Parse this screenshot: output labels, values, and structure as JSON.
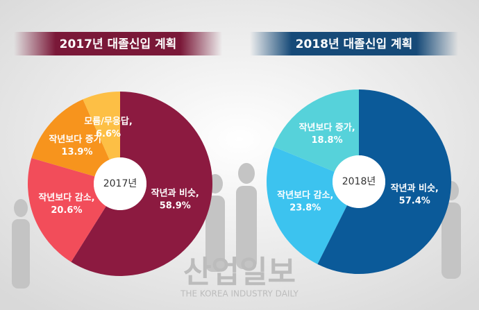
{
  "chart_data": [
    {
      "type": "pie",
      "title": "2017년 대졸신입 계획",
      "center_label": "2017년",
      "categories": [
        "작년과 비슷,",
        "작년보다 감소,",
        "작년보다 증가,",
        "모름/무응답,"
      ],
      "values": [
        58.9,
        20.6,
        13.9,
        6.6
      ],
      "value_labels": [
        "58.9%",
        "20.6%",
        "13.9%",
        "6.6%"
      ],
      "colors": [
        "#8c1a40",
        "#f24d5a",
        "#f7941d",
        "#fdbf45"
      ],
      "title_color": "#7a1838"
    },
    {
      "type": "pie",
      "title": "2018년 대졸신입 계획",
      "center_label": "2018년",
      "categories": [
        "작년과 비슷,",
        "작년보다 감소,",
        "작년보다 증가,"
      ],
      "values": [
        57.4,
        23.8,
        18.8
      ],
      "value_labels": [
        "57.4%",
        "23.8%",
        "18.8%"
      ],
      "colors": [
        "#0b5a99",
        "#3cc3ef",
        "#56d2da"
      ],
      "title_color": "#164a78"
    }
  ],
  "watermark": {
    "title": "산업일보",
    "subtitle": "THE KOREA INDUSTRY DAILY"
  }
}
